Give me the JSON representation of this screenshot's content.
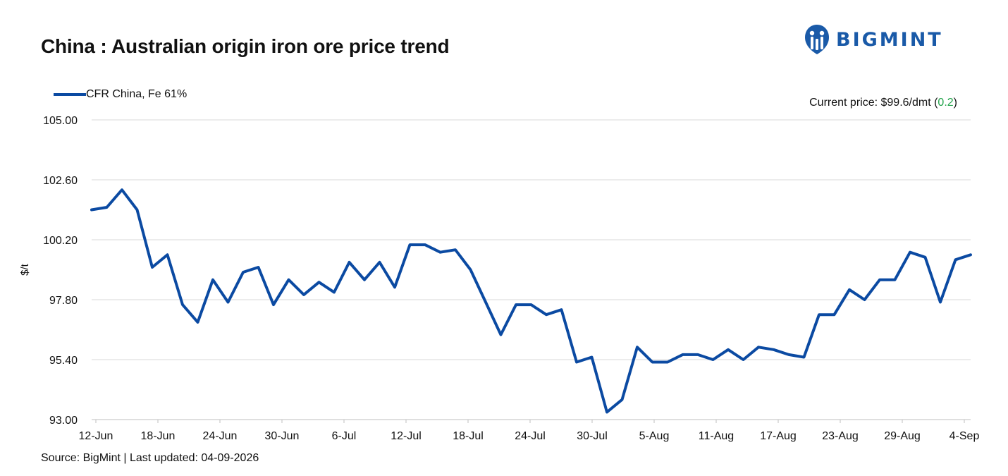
{
  "title": "China : Australian origin iron ore price trend",
  "brand": {
    "name": "BIGMINT",
    "color": "#1a5aa8",
    "icon": "bigmint-logo-icon"
  },
  "current_price": {
    "prefix": "Current price: $99.6/dmt (",
    "change": "0.2",
    "suffix": ")",
    "change_color": "#21a34a"
  },
  "source": "Source: BigMint | Last updated: 04-09-2026",
  "chart_data": {
    "type": "line",
    "title": "China : Australian origin iron ore price trend",
    "xlabel": "",
    "ylabel": "$/t",
    "ylim": [
      93.0,
      105.0
    ],
    "yticks": [
      "93.00",
      "95.40",
      "97.80",
      "100.20",
      "102.60",
      "105.00"
    ],
    "xticks": [
      "12-Jun",
      "18-Jun",
      "24-Jun",
      "30-Jun",
      "6-Jul",
      "12-Jul",
      "18-Jul",
      "24-Jul",
      "30-Jul",
      "5-Aug",
      "11-Aug",
      "17-Aug",
      "23-Aug",
      "29-Aug",
      "4-Sep"
    ],
    "grid": true,
    "legend": "top-left",
    "series": [
      {
        "name": "CFR China, Fe 61%",
        "color": "#0b4aa2",
        "values": [
          101.4,
          101.5,
          102.2,
          101.4,
          99.1,
          99.6,
          97.6,
          96.9,
          98.6,
          97.7,
          98.9,
          99.1,
          97.6,
          98.6,
          98.0,
          98.5,
          98.1,
          99.3,
          98.6,
          99.3,
          98.3,
          100.0,
          100.0,
          99.7,
          99.8,
          99.0,
          97.7,
          96.4,
          97.6,
          97.6,
          97.2,
          97.4,
          95.3,
          95.5,
          93.3,
          93.8,
          95.9,
          95.3,
          95.3,
          95.6,
          95.6,
          95.4,
          95.8,
          95.4,
          95.9,
          95.8,
          95.6,
          95.5,
          97.2,
          97.2,
          98.2,
          97.8,
          98.6,
          98.6,
          99.7,
          99.5,
          97.7,
          99.4,
          99.6
        ]
      }
    ]
  }
}
